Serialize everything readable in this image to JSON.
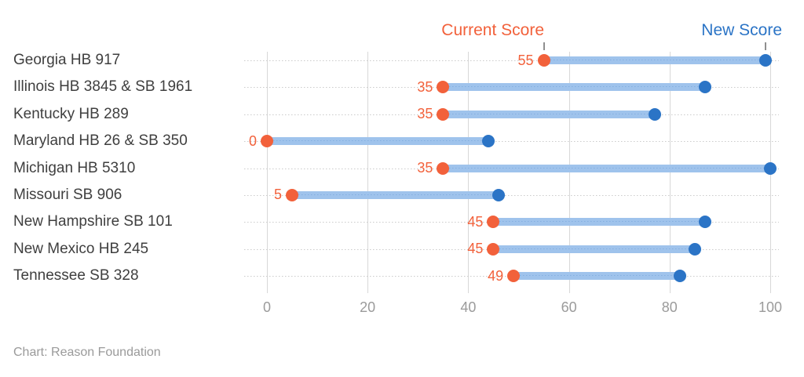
{
  "chart_data": {
    "type": "dumbbell",
    "title": "",
    "categories": [
      "Georgia HB 917",
      "Illinois HB 3845 & SB 1961",
      "Kentucky HB 289",
      "Maryland HB 26 & SB 350",
      "Michigan HB 5310",
      "Missouri SB 906",
      "New Hampshire SB 101",
      "New Mexico HB 245",
      "Tennessee SB 328"
    ],
    "series": [
      {
        "name": "Current Score",
        "color": "#f2613b",
        "values": [
          55,
          35,
          35,
          0,
          35,
          5,
          45,
          45,
          49
        ],
        "value_labels_shown": true
      },
      {
        "name": "New Score",
        "color": "#2b74c6",
        "values": [
          99,
          87,
          77,
          44,
          100,
          46,
          87,
          85,
          82
        ],
        "value_labels_shown": false
      }
    ],
    "connector_color": "#9fc3ec",
    "x_ticks": [
      0,
      20,
      40,
      60,
      80,
      100
    ],
    "xlim": [
      0,
      104
    ],
    "xlabel": "",
    "ylabel": "",
    "grid": "solid vertical gridlines at ticks; dotted horizontal guide per row",
    "legend_position": "top, colored text labels with ticks pointing to first-row dots"
  },
  "footer": {
    "credit": "Chart: Reason Foundation"
  },
  "colors": {
    "background": "#ffffff",
    "row_label": "#3f3f3f",
    "axis_label": "#9b9b9b",
    "gridline": "#d8d8d8",
    "row_guide": "#cbcbcb",
    "footer_text": "#9a9a9a"
  }
}
